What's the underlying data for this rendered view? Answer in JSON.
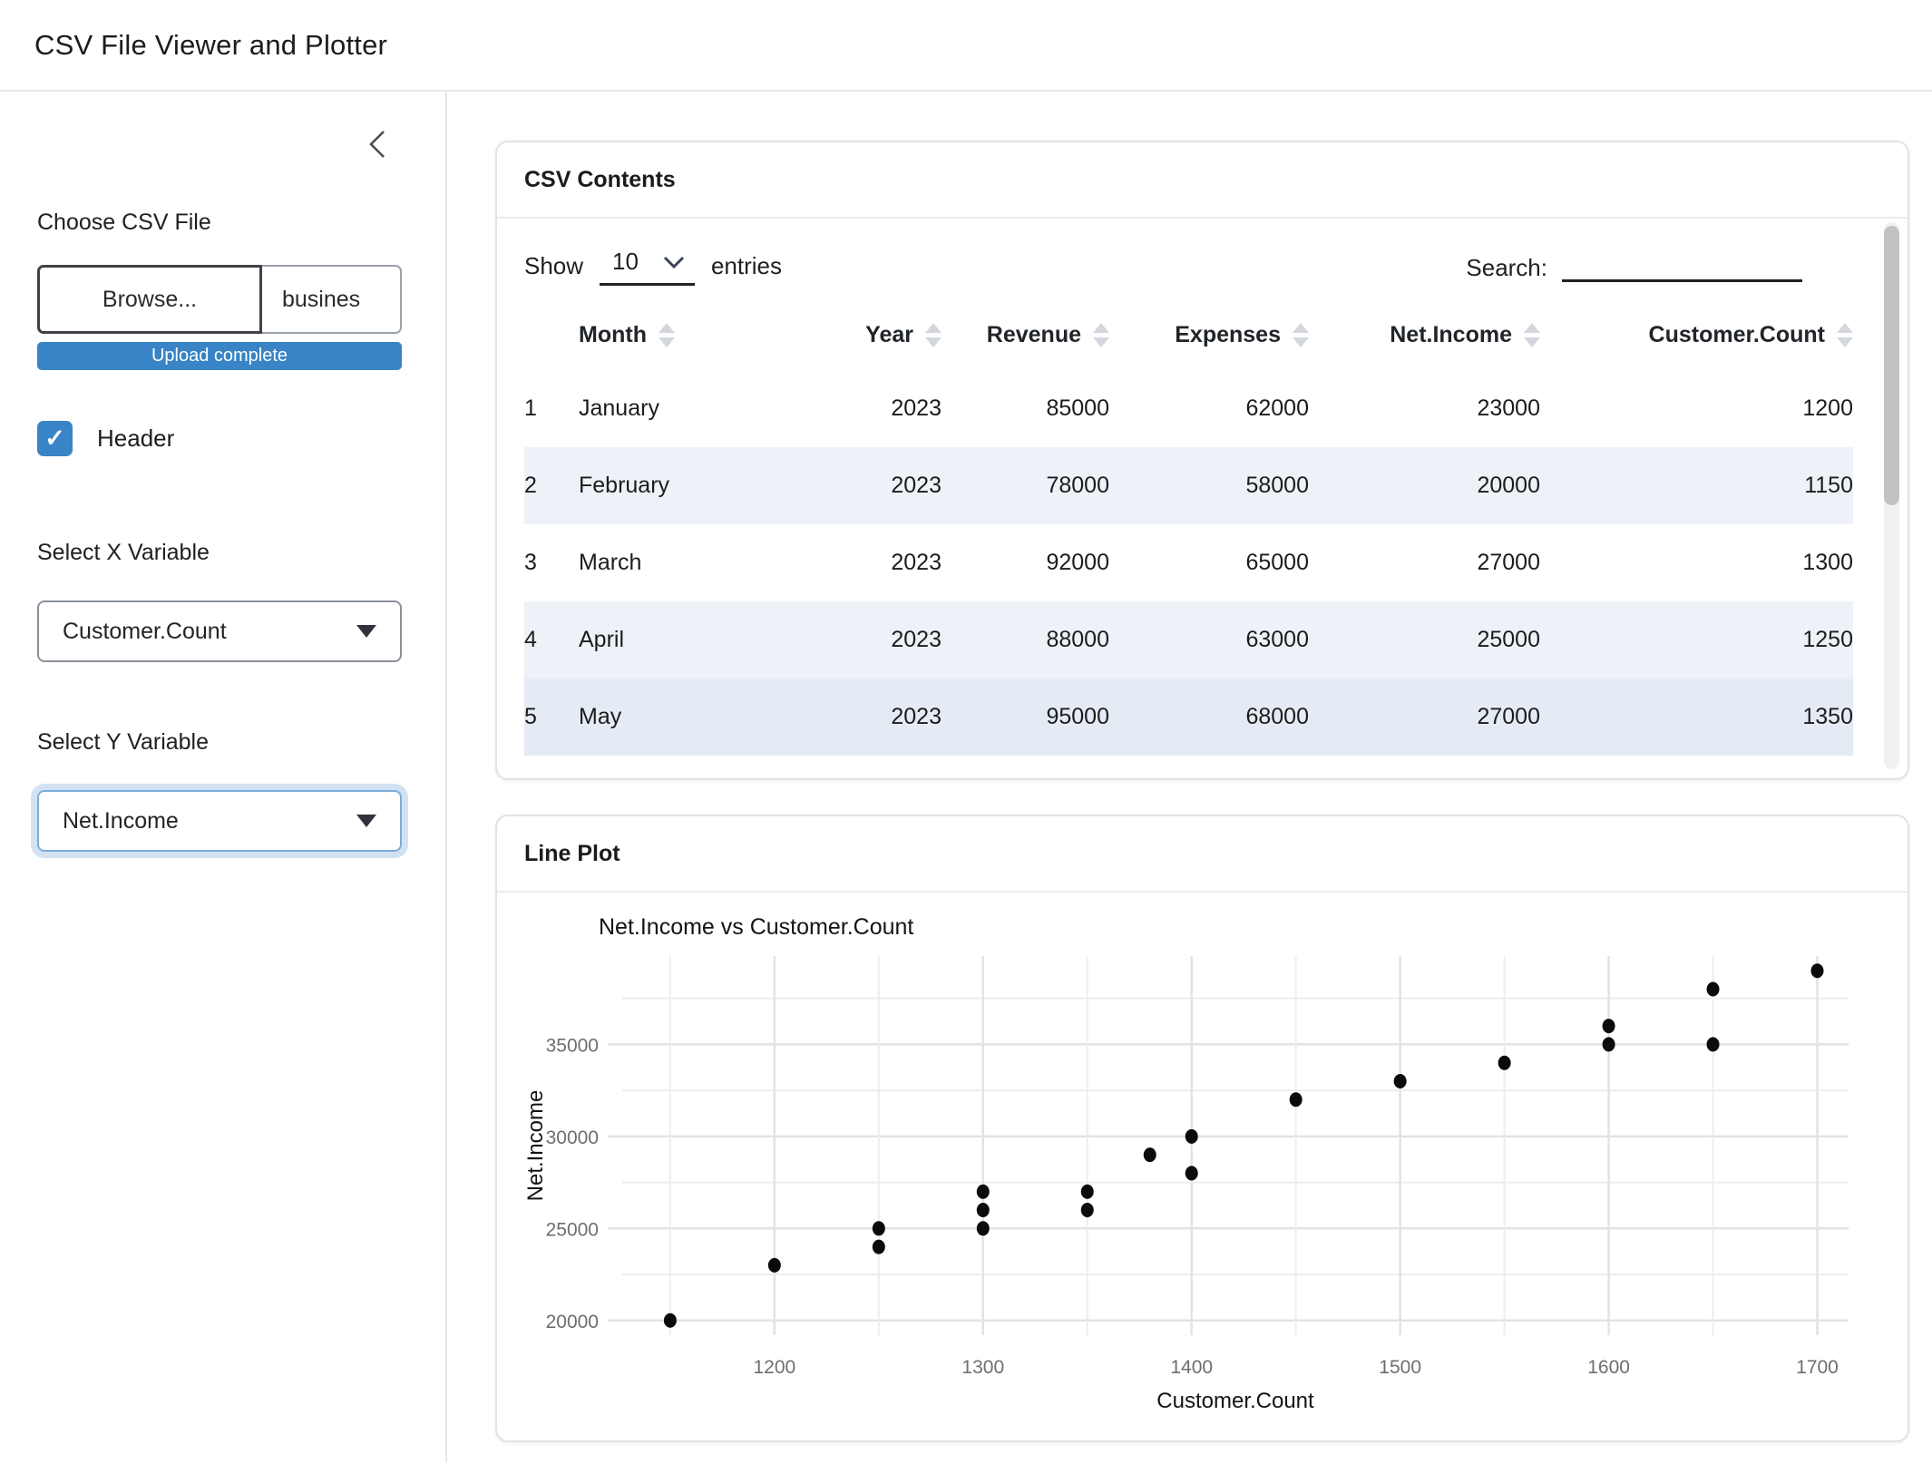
{
  "app": {
    "title": "CSV File Viewer and Plotter"
  },
  "sidebar": {
    "file_input": {
      "label": "Choose CSV File",
      "browse_label": "Browse...",
      "filename": "busines",
      "progress_text": "Upload complete"
    },
    "header_checkbox": {
      "label": "Header",
      "checked": true,
      "check_glyph": "✓"
    },
    "x_select": {
      "label": "Select X Variable",
      "value": "Customer.Count"
    },
    "y_select": {
      "label": "Select Y Variable",
      "value": "Net.Income"
    }
  },
  "csv_card": {
    "title": "CSV Contents",
    "show_label": "Show",
    "page_size": "10",
    "entries_label": "entries",
    "search_label": "Search:",
    "table": {
      "columns": [
        "Month",
        "Year",
        "Revenue",
        "Expenses",
        "Net.Income",
        "Customer.Count"
      ],
      "rows": [
        [
          "1",
          "January",
          "2023",
          "85000",
          "62000",
          "23000",
          "1200"
        ],
        [
          "2",
          "February",
          "2023",
          "78000",
          "58000",
          "20000",
          "1150"
        ],
        [
          "3",
          "March",
          "2023",
          "92000",
          "65000",
          "27000",
          "1300"
        ],
        [
          "4",
          "April",
          "2023",
          "88000",
          "63000",
          "25000",
          "1250"
        ],
        [
          "5",
          "May",
          "2023",
          "95000",
          "68000",
          "27000",
          "1350"
        ]
      ]
    }
  },
  "plot_card": {
    "title": "Line Plot"
  },
  "chart_data": {
    "type": "scatter",
    "title": "Net.Income vs Customer.Count",
    "xlabel": "Customer.Count",
    "ylabel": "Net.Income",
    "xlim": [
      1127,
      1715
    ],
    "ylim": [
      19200,
      39800
    ],
    "x_major_ticks": [
      1200,
      1300,
      1400,
      1500,
      1600,
      1700
    ],
    "y_major_ticks": [
      20000,
      25000,
      30000,
      35000
    ],
    "x_gridlines": [
      1150,
      1200,
      1250,
      1300,
      1350,
      1400,
      1450,
      1500,
      1550,
      1600,
      1650,
      1700
    ],
    "y_gridlines": [
      20000,
      22500,
      25000,
      27500,
      30000,
      32500,
      35000,
      37500
    ],
    "grid": true,
    "legend": null,
    "point_color": "#0b0b0b",
    "points": [
      [
        1150,
        20000
      ],
      [
        1200,
        23000
      ],
      [
        1250,
        24000
      ],
      [
        1250,
        25000
      ],
      [
        1300,
        25000
      ],
      [
        1300,
        26000
      ],
      [
        1300,
        27000
      ],
      [
        1350,
        26000
      ],
      [
        1350,
        27000
      ],
      [
        1380,
        29000
      ],
      [
        1400,
        28000
      ],
      [
        1400,
        30000
      ],
      [
        1450,
        32000
      ],
      [
        1500,
        33000
      ],
      [
        1550,
        34000
      ],
      [
        1600,
        35000
      ],
      [
        1600,
        36000
      ],
      [
        1650,
        35000
      ],
      [
        1650,
        38000
      ],
      [
        1700,
        39000
      ]
    ]
  },
  "colors": {
    "accent_blue": "#3884c6",
    "focus_ring_border": "#7aaeda",
    "stripe_row": "#eef2f8",
    "hover_row": "#e5ebf4",
    "grid_major": "#e3e3e3",
    "grid_minor": "#eeeeee",
    "tick_text": "#6e6e6e"
  }
}
